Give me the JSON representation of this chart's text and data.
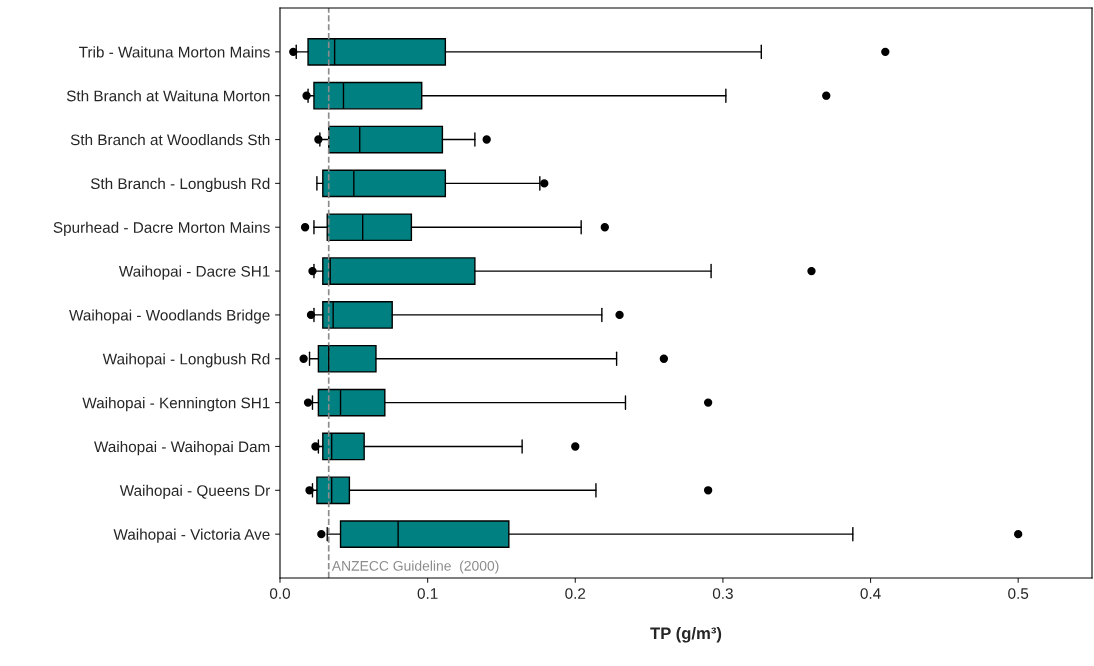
{
  "chart_data": {
    "type": "box",
    "orientation": "horizontal",
    "xlabel": "TP (g/m³)",
    "categories": [
      "Trib - Waituna Morton Mains",
      "Sth Branch at Waituna Morton",
      "Sth Branch at Woodlands Sth",
      "Sth Branch - Longbush Rd",
      "Spurhead - Dacre Morton Mains",
      "Waihopai - Dacre SH1",
      "Waihopai - Woodlands Bridge",
      "Waihopai - Longbush Rd",
      "Waihopai - Kennington SH1",
      "Waihopai - Waihopai Dam",
      "Waihopai - Queens Dr",
      "Waihopai - Victoria Ave"
    ],
    "color": "#008080",
    "boxes": [
      {
        "low": 0.011,
        "q1": 0.019,
        "median": 0.037,
        "q3": 0.112,
        "high": 0.326,
        "outliers": [
          0.009,
          0.41
        ]
      },
      {
        "low": 0.019,
        "q1": 0.023,
        "median": 0.043,
        "q3": 0.096,
        "high": 0.302,
        "outliers": [
          0.018,
          0.37
        ]
      },
      {
        "low": 0.027,
        "q1": 0.033,
        "median": 0.054,
        "q3": 0.11,
        "high": 0.132,
        "outliers": [
          0.026,
          0.14
        ]
      },
      {
        "low": 0.025,
        "q1": 0.029,
        "median": 0.05,
        "q3": 0.112,
        "high": 0.176,
        "outliers": [
          0.179
        ]
      },
      {
        "low": 0.023,
        "q1": 0.032,
        "median": 0.056,
        "q3": 0.089,
        "high": 0.204,
        "outliers": [
          0.017,
          0.22
        ]
      },
      {
        "low": 0.023,
        "q1": 0.029,
        "median": 0.034,
        "q3": 0.132,
        "high": 0.292,
        "outliers": [
          0.022,
          0.36
        ]
      },
      {
        "low": 0.023,
        "q1": 0.029,
        "median": 0.036,
        "q3": 0.076,
        "high": 0.218,
        "outliers": [
          0.021,
          0.23
        ]
      },
      {
        "low": 0.02,
        "q1": 0.026,
        "median": 0.033,
        "q3": 0.065,
        "high": 0.228,
        "outliers": [
          0.016,
          0.26
        ]
      },
      {
        "low": 0.022,
        "q1": 0.026,
        "median": 0.041,
        "q3": 0.071,
        "high": 0.234,
        "outliers": [
          0.019,
          0.29
        ]
      },
      {
        "low": 0.026,
        "q1": 0.029,
        "median": 0.035,
        "q3": 0.057,
        "high": 0.164,
        "outliers": [
          0.024,
          0.2
        ]
      },
      {
        "low": 0.022,
        "q1": 0.025,
        "median": 0.035,
        "q3": 0.047,
        "high": 0.214,
        "outliers": [
          0.02,
          0.29
        ]
      },
      {
        "low": 0.032,
        "q1": 0.041,
        "median": 0.08,
        "q3": 0.155,
        "high": 0.388,
        "outliers": [
          0.028,
          0.5
        ]
      }
    ],
    "xlim": [
      0,
      0.55
    ],
    "xticks": [
      "0.0",
      0.1,
      0.2,
      0.3,
      0.4,
      0.5
    ],
    "ref_lines": [
      {
        "axis": "x",
        "value": 0.033,
        "label": "ANZECC Guideline  (2000)",
        "color": "#8c8c8c",
        "line_style": "dashed"
      }
    ],
    "grid": false,
    "legend": false
  }
}
